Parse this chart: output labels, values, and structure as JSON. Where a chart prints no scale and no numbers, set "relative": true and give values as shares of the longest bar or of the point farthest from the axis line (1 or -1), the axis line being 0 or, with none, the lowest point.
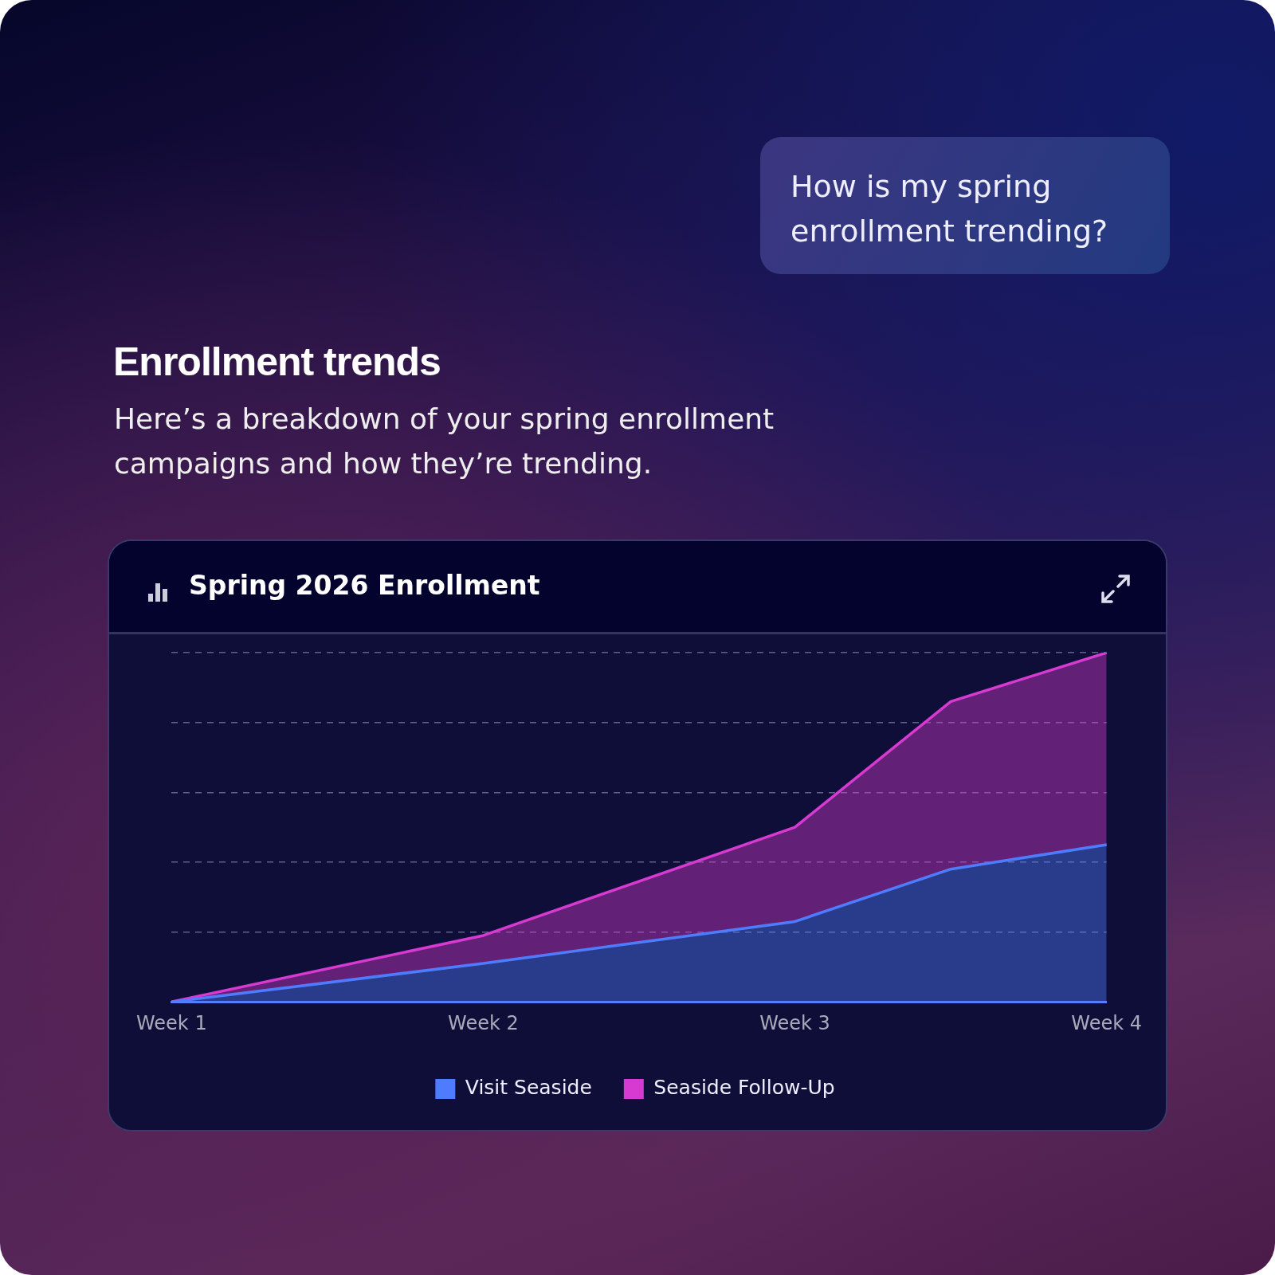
{
  "chart_data": {
    "type": "area",
    "title": "Enrollment trends",
    "subtitle": "Here’s a breakdown of your spring enrollment campaigns and how they’re trending.",
    "annotations": [
      "How is my spring enrollment trending?",
      "Spring 2026 Enrollment"
    ],
    "categories": [
      "Week 1",
      null,
      "Week 2",
      null,
      "Week 3",
      null,
      "Week 4"
    ],
    "relative": true,
    "stacked": true,
    "series": [
      {
        "name": "Visit Seaside",
        "color": "#4f7cff",
        "values": [
          0,
          null,
          0.11,
          null,
          0.23,
          0.38,
          0.45
        ]
      },
      {
        "name": "Seaside Follow-Up",
        "color": "#d63ad0",
        "values": [
          0,
          null,
          0.08,
          null,
          0.27,
          0.48,
          0.55
        ]
      }
    ],
    "grid": "y",
    "legend": "bottom",
    "marker": "none",
    "line_style": "solid"
  }
}
